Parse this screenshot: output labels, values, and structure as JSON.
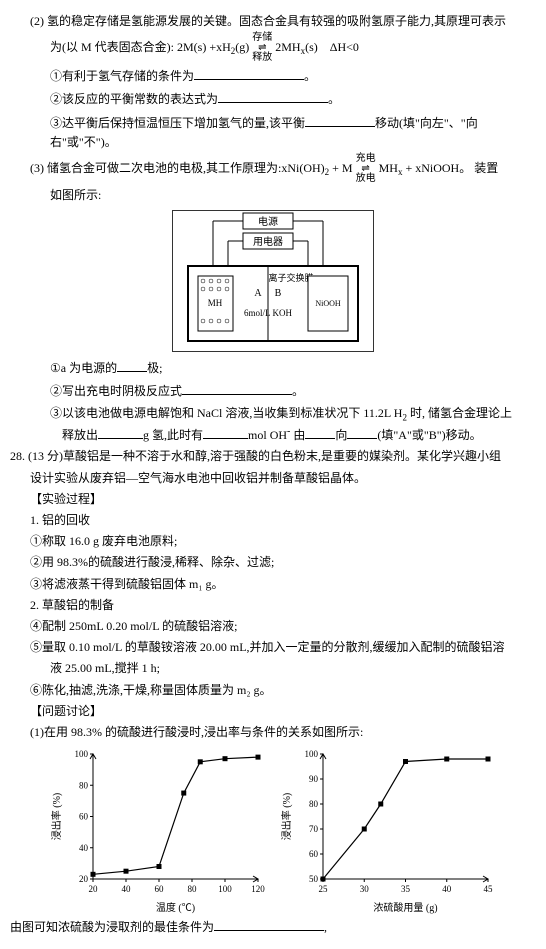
{
  "q2": {
    "line1": "(2) 氢的稳定存储是氢能源发展的关键。固态合金具有较强的吸附氢原子能力,其原理可表示",
    "line2_pre": "为(以 M 代表固态合金): 2M(s) +xH",
    "line2_mid": "(g)",
    "line2_top": "存储",
    "line2_bot": "释放",
    "line2_post": "2MH",
    "line2_end": "(s)　ΔH<0",
    "sub1": "①有利于氢气存储的条件为",
    "sub1_end": "。",
    "sub2": "②该反应的平衡常数的表达式为",
    "sub2_end": "。",
    "sub3_a": "③达平衡后保持恒温恒压下增加氢气的量,该平衡",
    "sub3_b": "移动(填\"向左\"、\"向右\"或\"不\")。"
  },
  "q3": {
    "line1_a": "(3) 储氢合金可做二次电池的电极,其工作原理为:xNi(OH)",
    "line1_b": " + M ",
    "line1_top": "充电",
    "line1_bot": "放电",
    "line1_c": " MH",
    "line1_d": " + xNiOOH。 装置",
    "line2": "如图所示:",
    "diagram": {
      "psu": "电源",
      "device": "用电器",
      "membrane": "离子交换膜",
      "left": "MH",
      "A": "A",
      "B": "B",
      "right": "NiOOH",
      "electrolyte": "6mol/L KOH"
    },
    "sub1_a": "①a 为电源的",
    "sub1_b": "极;",
    "sub2_a": "②写出充电时阴极反应式",
    "sub2_b": "。",
    "sub3_a": "③以该电池做电源电解饱和 NaCl 溶液,当收集到标准状况下 11.2L H",
    "sub3_b": " 时, 储氢合金理论上",
    "sub3_c": "释放出",
    "sub3_d": "g 氢,此时有",
    "sub3_e": "mol OH",
    "sub3_f": " 由",
    "sub3_g": "向",
    "sub3_h": "(填\"A\"或\"B\")移动。"
  },
  "q28": {
    "header_a": "28. (13 分)草酸铝是一种不溶于水和醇,溶于强酸的白色粉末,是重要的媒染剂。某化学兴趣小组",
    "header_b": "设计实验从废弃铝—空气海水电池中回收铝并制备草酸铝晶体。",
    "proc_title": "【实验过程】",
    "s1_title": "1. 铝的回收",
    "s1_1": "①称取 16.0 g 废弃电池原料;",
    "s1_2": "②用 98.3%的硫酸进行酸浸,稀释、除杂、过滤;",
    "s1_3": "③将滤液蒸干得到硫酸铝固体 m₁ g。",
    "s2_title": "2. 草酸铝的制备",
    "s2_4": "④配制 250mL 0.20 mol/L 的硫酸铝溶液;",
    "s2_5": "⑤量取 0.10 mol/L 的草酸铵溶液 20.00 mL,并加入一定量的分散剂,缓缓加入配制的硫酸铝溶",
    "s2_5b": "液 25.00 mL,搅拌 1 h;",
    "s2_6": "⑥陈化,抽滤,洗涤,干燥,称量固体质量为 m₂ g。",
    "disc_title": "【问题讨论】",
    "disc1": "(1)在用 98.3% 的硫酸进行酸浸时,浸出率与条件的关系如图所示:",
    "footer_a": "由图可知浓硫酸为浸取剂的最佳条件为",
    "footer_b": ","
  },
  "chart_left": {
    "ylabel": "浸出率 (%)",
    "xlabel": "温度 (℃)",
    "yticks": [
      20,
      40,
      60,
      80,
      100
    ],
    "xticks": [
      20,
      40,
      60,
      80,
      100,
      120
    ],
    "points": [
      [
        20,
        23
      ],
      [
        40,
        25
      ],
      [
        60,
        28
      ],
      [
        75,
        75
      ],
      [
        85,
        95
      ],
      [
        100,
        97
      ],
      [
        120,
        98
      ]
    ],
    "line_color": "#000",
    "marker": "square"
  },
  "chart_right": {
    "ylabel": "浸出率 (%)",
    "xlabel": "浓硫酸用量 (g)",
    "yticks": [
      50,
      60,
      70,
      80,
      90,
      100
    ],
    "xticks": [
      25,
      30,
      35,
      40,
      45
    ],
    "points": [
      [
        25,
        50
      ],
      [
        30,
        70
      ],
      [
        32,
        80
      ],
      [
        35,
        97
      ],
      [
        40,
        98
      ],
      [
        45,
        98
      ]
    ],
    "line_color": "#000",
    "marker": "square"
  },
  "style": {
    "bg": "#ffffff",
    "text_color": "#000000",
    "axis_color": "#000000",
    "grid": false,
    "font_size": 12,
    "marker_size": 3
  }
}
